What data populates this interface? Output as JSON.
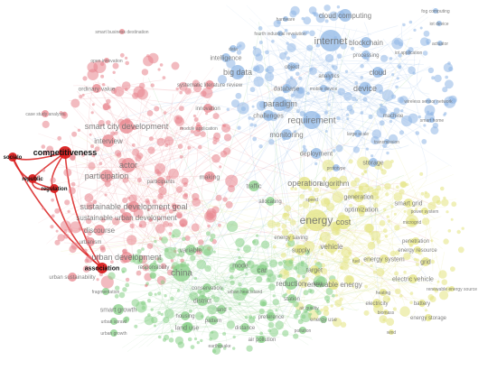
{
  "colors": {
    "red": "#e8848c",
    "blue": "#8fb7e6",
    "green": "#86cf86",
    "yellow": "#e3e37f",
    "highlight": "#d91f1f"
  },
  "clusters": {
    "red": [
      "smart business destination",
      "open innovation",
      "ordinary value",
      "case study analysis",
      "systematic literature review",
      "smart city development",
      "interview",
      "actor",
      "participation",
      "competitiveness",
      "socialo",
      "republic",
      "regulation",
      "sustainable development goal",
      "sustainable urban development",
      "discourse",
      "urbanism",
      "urban development",
      "urban sustainability",
      "association",
      "module application",
      "participants",
      "making",
      "innovation"
    ],
    "blue": [
      "hardware",
      "cloud computing",
      "fog computing",
      "iot device",
      "fourth industrial revolution",
      "internet",
      "blockchain",
      "actuator",
      "data",
      "intelligence",
      "big data",
      "object",
      "processing",
      "cloud",
      "iot application",
      "device",
      "database",
      "mobile device",
      "analytics",
      "paradigm",
      "requirement",
      "challenges",
      "wireless sensor network",
      "machine",
      "smart home",
      "large scale",
      "monitoring",
      "transmission",
      "deployment",
      "prototype",
      "storage"
    ],
    "yellow": [
      "operation",
      "algorithm",
      "speed",
      "generation",
      "optimization",
      "smart grid",
      "power system",
      "microgrid",
      "energy",
      "cost",
      "energy saving",
      "supply",
      "vehicle",
      "target",
      "energy system",
      "penetration",
      "energy resource",
      "grid",
      "renewable energy",
      "electric vehicle",
      "heating",
      "battery",
      "electricity",
      "energy storage",
      "renewable energy source",
      "biomass",
      "wind",
      "fuel"
    ],
    "green": [
      "traffic",
      "allocating",
      "china",
      "variable",
      "mode",
      "car",
      "reduction",
      "station",
      "loss",
      "responsibility",
      "district",
      "conservation",
      "urban heat island",
      "air quality",
      "fragmentation",
      "smart growth",
      "housing",
      "urban sprawl",
      "land use",
      "land",
      "pattern",
      "preference",
      "distance",
      "energy use",
      "urban growth",
      "earthquake",
      "air pollution",
      "pollution"
    ]
  },
  "highlight": {
    "terms": [
      "competitiveness",
      "socialo",
      "republic",
      "regulation",
      "association"
    ]
  }
}
